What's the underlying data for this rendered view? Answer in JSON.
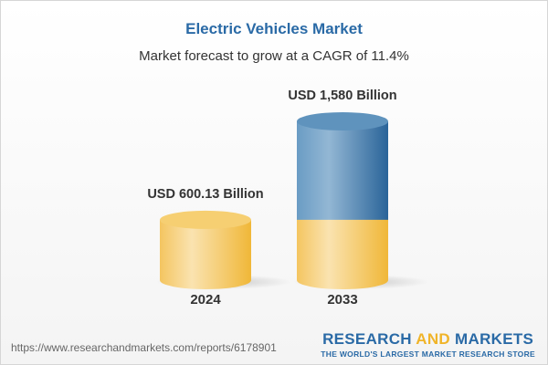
{
  "title": "Electric Vehicles Market",
  "subtitle": "Market forecast to grow at a CAGR of 11.4%",
  "chart_data": {
    "type": "bar",
    "style": "3d-cylinder",
    "categories": [
      "2024",
      "2033"
    ],
    "values": [
      600.13,
      1580
    ],
    "data_labels": [
      "USD 600.13 Billion",
      "USD 1,580 Billion"
    ],
    "unit": "USD Billion",
    "colors": {
      "base": "#f3c35a",
      "growth": "#4f86b5"
    }
  },
  "footer": {
    "url": "https://www.researchandmarkets.com/reports/6178901",
    "logo_part1": "RESEARCH ",
    "logo_part2": "AND",
    "logo_part3": " MARKETS",
    "tagline": "THE WORLD'S LARGEST MARKET RESEARCH STORE"
  }
}
